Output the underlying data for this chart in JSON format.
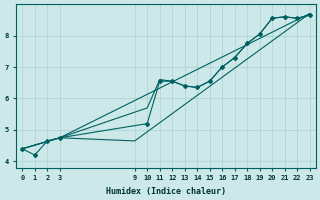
{
  "xlabel": "Humidex (Indice chaleur)",
  "bg_color": "#cce8e8",
  "grid_color": "#aad0d0",
  "line_color": "#006060",
  "xlim": [
    -0.5,
    23.5
  ],
  "ylim": [
    3.8,
    9.0
  ],
  "xticks": [
    0,
    1,
    2,
    3,
    9,
    10,
    11,
    12,
    13,
    14,
    15,
    16,
    17,
    18,
    19,
    20,
    21,
    22,
    23
  ],
  "yticks": [
    4,
    5,
    6,
    7,
    8
  ],
  "line1_x": [
    0,
    1,
    2,
    3,
    10,
    11,
    12,
    13,
    14,
    15,
    16,
    17,
    18,
    19,
    20,
    21,
    22,
    23
  ],
  "line1_y": [
    4.4,
    4.2,
    4.65,
    4.75,
    5.2,
    6.55,
    6.55,
    6.4,
    6.35,
    6.55,
    7.0,
    7.3,
    7.75,
    8.05,
    8.55,
    8.6,
    8.55,
    8.65
  ],
  "line2_x": [
    0,
    3,
    10,
    11,
    12,
    13,
    14,
    15,
    16,
    17,
    18,
    19,
    20,
    21,
    22,
    23
  ],
  "line2_y": [
    4.4,
    4.75,
    5.7,
    6.6,
    6.55,
    6.4,
    6.35,
    6.55,
    7.0,
    7.3,
    7.75,
    8.05,
    8.55,
    8.6,
    8.55,
    8.65
  ],
  "line3_x": [
    0,
    3,
    9,
    23
  ],
  "line3_y": [
    4.4,
    4.75,
    4.65,
    8.7
  ],
  "line4_x": [
    0,
    3,
    23
  ],
  "line4_y": [
    4.4,
    4.75,
    8.7
  ]
}
